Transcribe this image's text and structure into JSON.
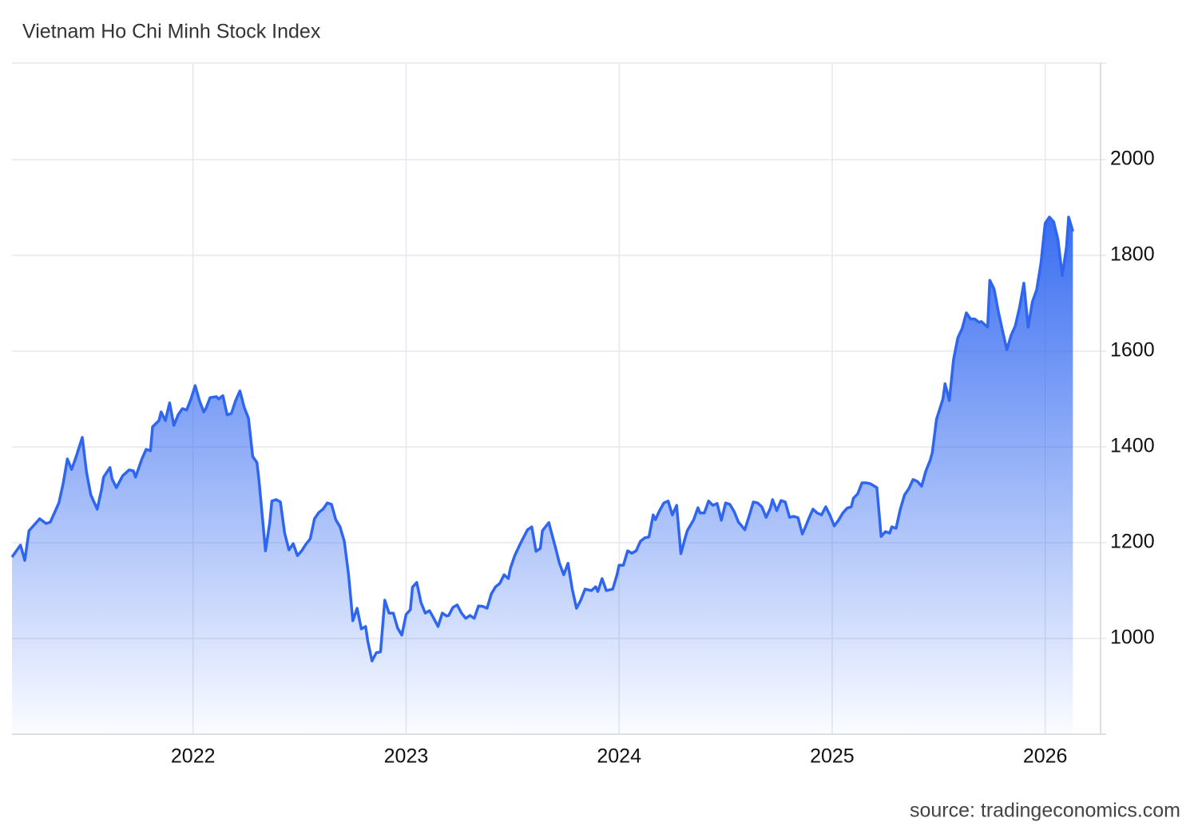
{
  "chart_data": {
    "type": "area",
    "title": "Vietnam Ho Chi Minh Stock Index",
    "source": "source: tradingeconomics.com",
    "color": "#2f66f0",
    "xlim": [
      2021.15,
      2026.26
    ],
    "xticks": [
      2022,
      2023,
      2024,
      2025,
      2026
    ],
    "ylim": [
      800,
      2200
    ],
    "yticks": [
      1000,
      1200,
      1400,
      1600,
      1800,
      2000
    ],
    "grid": true,
    "x": [
      2021.15,
      2021.19,
      2021.21,
      2021.23,
      2021.28,
      2021.31,
      2021.33,
      2021.37,
      2021.39,
      2021.41,
      2021.43,
      2021.45,
      2021.46,
      2021.48,
      2021.5,
      2021.52,
      2021.55,
      2021.57,
      2021.58,
      2021.61,
      2021.62,
      2021.64,
      2021.67,
      2021.7,
      2021.72,
      2021.73,
      2021.76,
      2021.78,
      2021.8,
      2021.81,
      2021.84,
      2021.85,
      2021.87,
      2021.89,
      2021.91,
      2021.93,
      2021.95,
      2021.97,
      2021.99,
      2022.01,
      2022.03,
      2022.05,
      2022.06,
      2022.08,
      2022.11,
      2022.12,
      2022.14,
      2022.16,
      2022.18,
      2022.2,
      2022.22,
      2022.24,
      2022.26,
      2022.28,
      2022.3,
      2022.31,
      2022.34,
      2022.36,
      2022.37,
      2022.39,
      2022.41,
      2022.43,
      2022.45,
      2022.47,
      2022.49,
      2022.51,
      2022.53,
      2022.55,
      2022.57,
      2022.59,
      2022.61,
      2022.63,
      2022.65,
      2022.67,
      2022.69,
      2022.71,
      2022.73,
      2022.75,
      2022.77,
      2022.79,
      2022.81,
      2022.82,
      2022.84,
      2022.86,
      2022.88,
      2022.9,
      2022.92,
      2022.94,
      2022.96,
      2022.98,
      2023.0,
      2023.02,
      2023.03,
      2023.05,
      2023.07,
      2023.09,
      2023.11,
      2023.13,
      2023.15,
      2023.17,
      2023.19,
      2023.2,
      2023.22,
      2023.24,
      2023.26,
      2023.28,
      2023.3,
      2023.32,
      2023.34,
      2023.36,
      2023.38,
      2023.4,
      2023.42,
      2023.44,
      2023.46,
      2023.48,
      2023.49,
      2023.51,
      2023.53,
      2023.55,
      2023.57,
      2023.59,
      2023.61,
      2023.63,
      2023.64,
      2023.67,
      2023.68,
      2023.7,
      2023.72,
      2023.74,
      2023.76,
      2023.78,
      2023.8,
      2023.82,
      2023.84,
      2023.87,
      2023.89,
      2023.9,
      2023.92,
      2023.94,
      2023.97,
      2023.99,
      2024.0,
      2024.02,
      2024.04,
      2024.06,
      2024.08,
      2024.1,
      2024.12,
      2024.14,
      2024.16,
      2024.17,
      2024.19,
      2024.21,
      2024.23,
      2024.25,
      2024.27,
      2024.29,
      2024.31,
      2024.32,
      2024.35,
      2024.37,
      2024.38,
      2024.4,
      2024.42,
      2024.44,
      2024.46,
      2024.48,
      2024.5,
      2024.52,
      2024.54,
      2024.56,
      2024.57,
      2024.59,
      2024.61,
      2024.63,
      2024.65,
      2024.67,
      2024.69,
      2024.71,
      2024.72,
      2024.74,
      2024.76,
      2024.78,
      2024.8,
      2024.82,
      2024.84,
      2024.86,
      2024.87,
      2024.89,
      2024.91,
      2024.93,
      2024.95,
      2024.97,
      2024.99,
      2025.01,
      2025.03,
      2025.05,
      2025.07,
      2025.09,
      2025.1,
      2025.12,
      2025.14,
      2025.16,
      2025.18,
      2025.21,
      2025.23,
      2025.25,
      2025.27,
      2025.28,
      2025.3,
      2025.32,
      2025.34,
      2025.36,
      2025.38,
      2025.4,
      2025.42,
      2025.44,
      2025.46,
      2025.47,
      2025.49,
      2025.52,
      2025.53,
      2025.55,
      2025.57,
      2025.59,
      2025.61,
      2025.63,
      2025.65,
      2025.67,
      2025.69,
      2025.7,
      2025.73,
      2025.74,
      2025.76,
      2025.78,
      2025.8,
      2025.82,
      2025.84,
      2025.86,
      2025.88,
      2025.9,
      2025.92,
      2025.94,
      2025.96,
      2025.98,
      2026.0,
      2026.02,
      2026.04,
      2026.06,
      2026.08,
      2026.1,
      2026.11,
      2026.13
    ],
    "values": [
      1170,
      1195,
      1163,
      1225,
      1250,
      1240,
      1243,
      1283,
      1323,
      1375,
      1353,
      1378,
      1392,
      1420,
      1347,
      1300,
      1270,
      1310,
      1337,
      1357,
      1333,
      1315,
      1340,
      1352,
      1350,
      1337,
      1375,
      1395,
      1392,
      1442,
      1455,
      1473,
      1455,
      1492,
      1445,
      1467,
      1480,
      1477,
      1500,
      1528,
      1497,
      1473,
      1480,
      1503,
      1505,
      1500,
      1507,
      1467,
      1470,
      1497,
      1517,
      1483,
      1460,
      1380,
      1367,
      1328,
      1183,
      1242,
      1287,
      1290,
      1285,
      1220,
      1185,
      1198,
      1173,
      1183,
      1197,
      1208,
      1250,
      1263,
      1270,
      1283,
      1280,
      1248,
      1233,
      1203,
      1133,
      1037,
      1063,
      1020,
      1025,
      995,
      953,
      970,
      972,
      1080,
      1053,
      1053,
      1022,
      1007,
      1050,
      1060,
      1107,
      1117,
      1075,
      1053,
      1058,
      1042,
      1025,
      1053,
      1047,
      1048,
      1065,
      1070,
      1053,
      1042,
      1048,
      1042,
      1068,
      1067,
      1063,
      1093,
      1108,
      1115,
      1133,
      1125,
      1147,
      1173,
      1192,
      1210,
      1227,
      1233,
      1182,
      1188,
      1225,
      1242,
      1225,
      1192,
      1157,
      1133,
      1157,
      1103,
      1063,
      1080,
      1103,
      1100,
      1108,
      1098,
      1125,
      1100,
      1103,
      1133,
      1153,
      1153,
      1183,
      1178,
      1183,
      1203,
      1210,
      1212,
      1258,
      1248,
      1267,
      1283,
      1287,
      1258,
      1278,
      1177,
      1210,
      1225,
      1248,
      1273,
      1262,
      1262,
      1287,
      1278,
      1282,
      1247,
      1283,
      1280,
      1265,
      1243,
      1238,
      1227,
      1255,
      1285,
      1283,
      1275,
      1253,
      1272,
      1290,
      1267,
      1288,
      1285,
      1253,
      1255,
      1252,
      1218,
      1228,
      1250,
      1270,
      1262,
      1258,
      1275,
      1257,
      1235,
      1247,
      1262,
      1272,
      1275,
      1293,
      1302,
      1325,
      1325,
      1323,
      1315,
      1213,
      1223,
      1220,
      1233,
      1230,
      1270,
      1300,
      1313,
      1332,
      1328,
      1318,
      1350,
      1372,
      1388,
      1458,
      1500,
      1532,
      1497,
      1583,
      1628,
      1647,
      1680,
      1667,
      1667,
      1660,
      1662,
      1650,
      1748,
      1730,
      1683,
      1642,
      1603,
      1633,
      1653,
      1692,
      1742,
      1650,
      1703,
      1728,
      1783,
      1867,
      1880,
      1870,
      1833,
      1758,
      1817,
      1880,
      1850
    ]
  }
}
